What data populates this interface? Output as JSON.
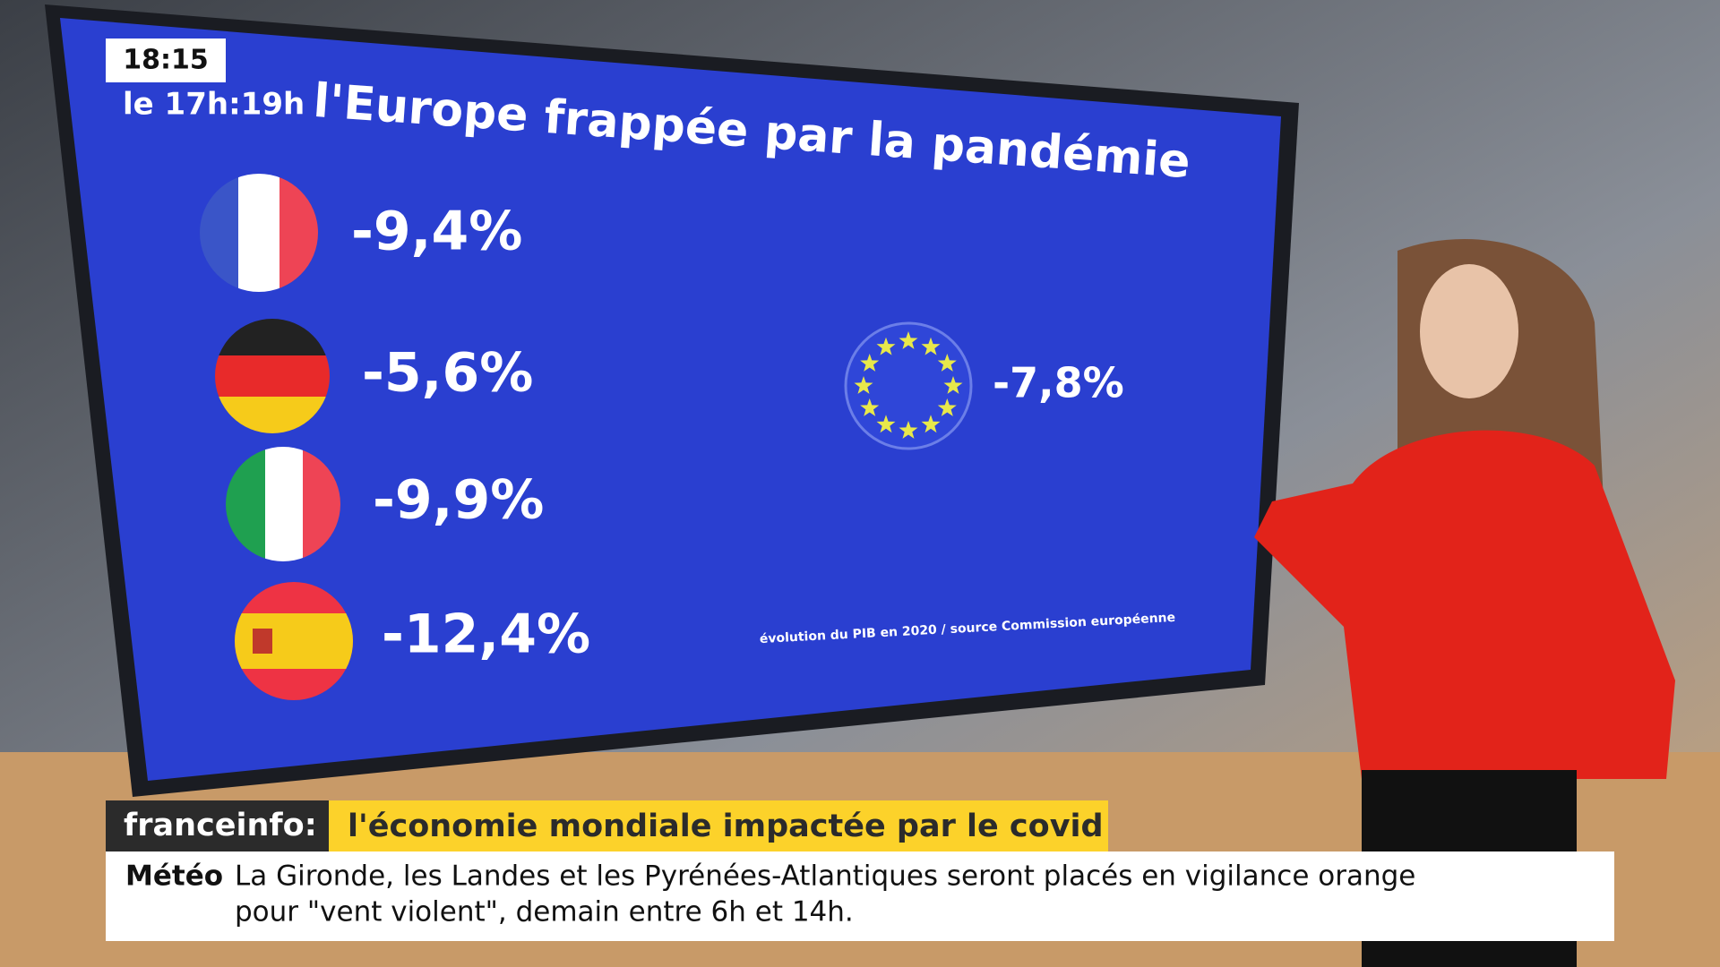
{
  "clock": {
    "time": "18:15",
    "slot": "le 17h:19h"
  },
  "screen": {
    "title": "l'Europe frappée par la pandémie",
    "countries": [
      {
        "value": "-9,4%"
      },
      {
        "value": "-5,6%"
      },
      {
        "value": "-9,9%"
      },
      {
        "value": "-12,4%"
      }
    ],
    "eu": {
      "value": "-7,8%"
    },
    "source": "évolution du PIB en 2020 / source Commission européenne"
  },
  "banner": {
    "brand": "franceinfo:",
    "headline": "l'économie mondiale impactée par le covid"
  },
  "ticker": {
    "label": "Météo",
    "lines": [
      "La Gironde, les Landes et les Pyrénées-Atlantiques seront placés en vigilance orange",
      "pour \"vent violent\", demain entre 6h et 14h."
    ]
  }
}
